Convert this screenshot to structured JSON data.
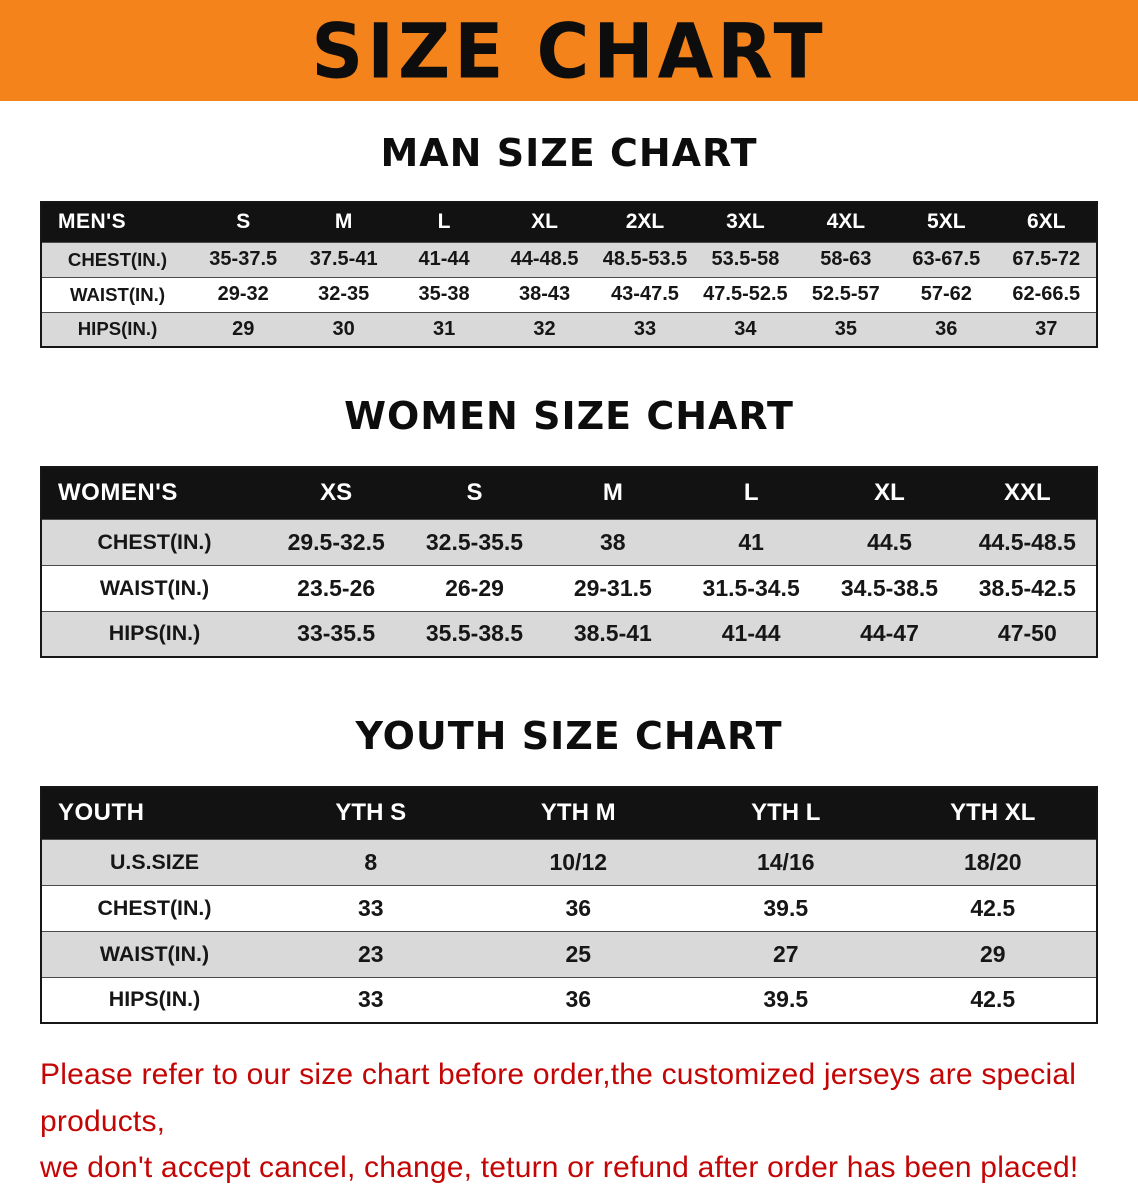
{
  "banner": {
    "title": "SIZE CHART"
  },
  "colors": {
    "banner_orange": "#F4831B",
    "header_black": "#121212",
    "stripe_gray": "#D9D9D9",
    "disclaimer_red": "#C40505"
  },
  "sections": [
    {
      "id": "men",
      "heading": "MAN SIZE CHART",
      "table": {
        "header": [
          "MEN'S",
          "S",
          "M",
          "L",
          "XL",
          "2XL",
          "3XL",
          "4XL",
          "5XL",
          "6XL"
        ],
        "rows": [
          {
            "label": "CHEST(IN.)",
            "values": [
              "35-37.5",
              "37.5-41",
              "41-44",
              "44-48.5",
              "48.5-53.5",
              "53.5-58",
              "58-63",
              "63-67.5",
              "67.5-72"
            ]
          },
          {
            "label": "WAIST(IN.)",
            "values": [
              "29-32",
              "32-35",
              "35-38",
              "38-43",
              "43-47.5",
              "47.5-52.5",
              "52.5-57",
              "57-62",
              "62-66.5"
            ]
          },
          {
            "label": "HIPS(IN.)",
            "values": [
              "29",
              "30",
              "31",
              "32",
              "33",
              "34",
              "35",
              "36",
              "37"
            ]
          }
        ]
      }
    },
    {
      "id": "women",
      "heading": "WOMEN SIZE CHART",
      "table": {
        "header": [
          "WOMEN'S",
          "XS",
          "S",
          "M",
          "L",
          "XL",
          "XXL"
        ],
        "rows": [
          {
            "label": "CHEST(IN.)",
            "values": [
              "29.5-32.5",
              "32.5-35.5",
              "38",
              "41",
              "44.5",
              "44.5-48.5"
            ]
          },
          {
            "label": "WAIST(IN.)",
            "values": [
              "23.5-26",
              "26-29",
              "29-31.5",
              "31.5-34.5",
              "34.5-38.5",
              "38.5-42.5"
            ]
          },
          {
            "label": "HIPS(IN.)",
            "values": [
              "33-35.5",
              "35.5-38.5",
              "38.5-41",
              "41-44",
              "44-47",
              "47-50"
            ]
          }
        ]
      }
    },
    {
      "id": "youth",
      "heading": "YOUTH SIZE CHART",
      "table": {
        "header": [
          "YOUTH",
          "YTH S",
          "YTH M",
          "YTH L",
          "YTH XL"
        ],
        "rows": [
          {
            "label": "U.S.SIZE",
            "values": [
              "8",
              "10/12",
              "14/16",
              "18/20"
            ]
          },
          {
            "label": "CHEST(IN.)",
            "values": [
              "33",
              "36",
              "39.5",
              "42.5"
            ]
          },
          {
            "label": "WAIST(IN.)",
            "values": [
              "23",
              "25",
              "27",
              "29"
            ]
          },
          {
            "label": "HIPS(IN.)",
            "values": [
              "33",
              "36",
              "39.5",
              "42.5"
            ]
          }
        ]
      }
    }
  ],
  "disclaimer": {
    "line1": "Please refer to our size chart before order,the customized jerseys are special products,",
    "line2": "we don't accept cancel, change, teturn or refund after order has been placed!"
  }
}
